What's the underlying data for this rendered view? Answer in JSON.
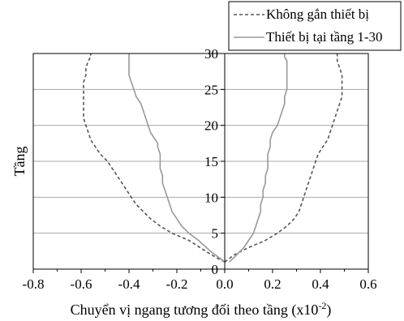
{
  "chart_data": {
    "type": "line",
    "title": "",
    "xlabel": "Chuyển vị ngang tương đối theo tầng (x10",
    "xlabel_exp": "-2",
    "xlabel_suffix": ")",
    "ylabel": "Tầng",
    "xlim": [
      -0.8,
      0.6
    ],
    "ylim": [
      0,
      30
    ],
    "x_ticks": [
      -0.8,
      -0.6,
      -0.4,
      -0.2,
      0.0,
      0.2,
      0.4,
      0.6
    ],
    "x_tick_labels": [
      "-0.8",
      "-0.6",
      "-0.4",
      "-0.2",
      "0.0",
      "0.2",
      "0.4",
      "0.6"
    ],
    "y_ticks": [
      0,
      5,
      10,
      15,
      20,
      25,
      30
    ],
    "y_tick_labels": [
      "0",
      "5",
      "10",
      "15",
      "20",
      "25",
      "30"
    ],
    "grid": "horizontal",
    "legend_position": "top-right",
    "series": [
      {
        "name": "Không gắn thiết bị",
        "style": "dashed",
        "color": "#555555",
        "branches": [
          {
            "x": [
              0.0,
              -0.03,
              -0.08,
              -0.15,
              -0.22,
              -0.27,
              -0.31,
              -0.34,
              -0.37,
              -0.39,
              -0.41,
              -0.43,
              -0.45,
              -0.47,
              -0.49,
              -0.52,
              -0.54,
              -0.56,
              -0.57,
              -0.58,
              -0.59,
              -0.59,
              -0.59,
              -0.59,
              -0.59,
              -0.59,
              -0.58,
              -0.58,
              -0.57,
              -0.56,
              -0.56
            ],
            "y": [
              1,
              1.5,
              2.5,
              4,
              5,
              6,
              7,
              8,
              9,
              10,
              11,
              12,
              13,
              14,
              15,
              16,
              17,
              18,
              19,
              20,
              21,
              22,
              23,
              24,
              25,
              26,
              27,
              28,
              29,
              29.5,
              30
            ]
          },
          {
            "x": [
              0.0,
              0.04,
              0.1,
              0.17,
              0.22,
              0.26,
              0.29,
              0.31,
              0.32,
              0.33,
              0.34,
              0.35,
              0.36,
              0.37,
              0.38,
              0.39,
              0.41,
              0.43,
              0.44,
              0.45,
              0.46,
              0.47,
              0.48,
              0.49,
              0.49,
              0.49,
              0.49,
              0.48,
              0.47,
              0.47
            ],
            "y": [
              1,
              2,
              3,
              4,
              5,
              6,
              7,
              8,
              9,
              10,
              11,
              12,
              13,
              14,
              15,
              16,
              17,
              18,
              19,
              20,
              21,
              22,
              23,
              24,
              25,
              26,
              27,
              28,
              29,
              30
            ]
          }
        ]
      },
      {
        "name": "Thiết bị tại tầng 1-30",
        "style": "solid",
        "color": "#999999",
        "branches": [
          {
            "x": [
              0.0,
              -0.02,
              -0.06,
              -0.11,
              -0.15,
              -0.18,
              -0.2,
              -0.22,
              -0.23,
              -0.24,
              -0.25,
              -0.26,
              -0.26,
              -0.27,
              -0.27,
              -0.27,
              -0.28,
              -0.28,
              -0.29,
              -0.31,
              -0.32,
              -0.33,
              -0.34,
              -0.35,
              -0.37,
              -0.38,
              -0.39,
              -0.4,
              -0.4,
              -0.4,
              -0.4
            ],
            "y": [
              1,
              1.5,
              2.5,
              4,
              5,
              6,
              7,
              8,
              9,
              10,
              11,
              12,
              13,
              14,
              15,
              16,
              17,
              17.5,
              18,
              19,
              20,
              21,
              22,
              23,
              24,
              25,
              26,
              27,
              28,
              29,
              30
            ]
          },
          {
            "x": [
              0.02,
              0.05,
              0.08,
              0.1,
              0.12,
              0.13,
              0.14,
              0.15,
              0.15,
              0.16,
              0.16,
              0.17,
              0.17,
              0.18,
              0.18,
              0.18,
              0.19,
              0.19,
              0.2,
              0.22,
              0.23,
              0.24,
              0.25,
              0.25,
              0.26,
              0.26,
              0.26,
              0.26,
              0.26,
              0.25,
              0.25
            ],
            "y": [
              1,
              2,
              3,
              4,
              5,
              6,
              7,
              8,
              9,
              10,
              11,
              12,
              13,
              14,
              15,
              16,
              17,
              18,
              19,
              20,
              21,
              22,
              23,
              24,
              25,
              26,
              27,
              28,
              29,
              29.5,
              30
            ]
          }
        ]
      }
    ]
  }
}
